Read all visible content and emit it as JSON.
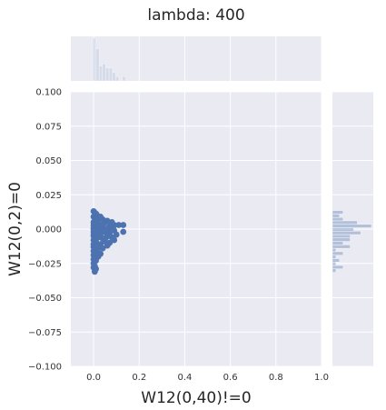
{
  "chart_data": {
    "type": "scatter",
    "title": "lambda: 400",
    "xlabel": "W12(0,40)!=0",
    "ylabel": "W12(0,2)=0",
    "xlim": [
      -0.1,
      1.0
    ],
    "ylim": [
      -0.1,
      0.1
    ],
    "xticks": [
      0.0,
      0.2,
      0.4,
      0.6,
      0.8,
      1.0
    ],
    "xtick_labels": [
      "0.0",
      "0.2",
      "0.4",
      "0.6",
      "0.8",
      "1.0"
    ],
    "yticks": [
      -0.1,
      -0.075,
      -0.05,
      -0.025,
      0.0,
      0.025,
      0.05,
      0.075,
      0.1
    ],
    "ytick_labels": [
      "−0.100",
      "−0.075",
      "−0.050",
      "−0.025",
      "0.000",
      "0.025",
      "0.050",
      "0.075",
      "0.100"
    ],
    "grid": true,
    "marginal_histograms": true,
    "colors": {
      "points": "#4c72b0",
      "axes_bg": "#eaeaf2",
      "grid": "#ffffff",
      "hist": "#4c72b0"
    },
    "points": [
      [
        0.0,
        0.013
      ],
      [
        0.005,
        0.012
      ],
      [
        0.012,
        0.011
      ],
      [
        0.0,
        0.009
      ],
      [
        0.01,
        0.008
      ],
      [
        0.02,
        0.007
      ],
      [
        0.04,
        0.007
      ],
      [
        0.06,
        0.006
      ],
      [
        0.08,
        0.005
      ],
      [
        0.05,
        0.005
      ],
      [
        0.012,
        0.004
      ],
      [
        0.0,
        0.003
      ],
      [
        0.03,
        0.003
      ],
      [
        0.09,
        0.003
      ],
      [
        0.11,
        0.003
      ],
      [
        0.13,
        0.003
      ],
      [
        0.07,
        0.002
      ],
      [
        0.04,
        0.001
      ],
      [
        0.0,
        0.001
      ],
      [
        0.02,
        0.0
      ],
      [
        0.06,
        0.0
      ],
      [
        0.09,
        -0.001
      ],
      [
        0.0,
        -0.002
      ],
      [
        0.01,
        -0.002
      ],
      [
        0.05,
        -0.002
      ],
      [
        0.07,
        -0.003
      ],
      [
        0.13,
        -0.002
      ],
      [
        0.1,
        -0.004
      ],
      [
        0.03,
        -0.004
      ],
      [
        0.0,
        -0.005
      ],
      [
        0.06,
        -0.005
      ],
      [
        0.08,
        -0.006
      ],
      [
        0.02,
        -0.006
      ],
      [
        0.04,
        -0.007
      ],
      [
        0.0,
        -0.008
      ],
      [
        0.09,
        -0.008
      ],
      [
        0.01,
        -0.009
      ],
      [
        0.05,
        -0.009
      ],
      [
        0.07,
        -0.01
      ],
      [
        0.0,
        -0.011
      ],
      [
        0.03,
        -0.011
      ],
      [
        0.06,
        -0.012
      ],
      [
        0.0,
        -0.013
      ],
      [
        0.02,
        -0.014
      ],
      [
        0.04,
        -0.014
      ],
      [
        0.0,
        -0.016
      ],
      [
        0.01,
        -0.017
      ],
      [
        0.03,
        -0.018
      ],
      [
        0.0,
        -0.019
      ],
      [
        0.02,
        -0.02
      ],
      [
        0.0,
        -0.022
      ],
      [
        0.01,
        -0.023
      ],
      [
        0.0,
        -0.025
      ],
      [
        0.005,
        -0.027
      ],
      [
        0.0,
        -0.028
      ],
      [
        0.01,
        -0.029
      ],
      [
        0.005,
        -0.031
      ],
      [
        0.0,
        0.005
      ],
      [
        0.0,
        -0.004
      ],
      [
        0.0,
        0.0
      ],
      [
        0.015,
        0.006
      ],
      [
        0.025,
        0.002
      ],
      [
        0.035,
        -0.001
      ],
      [
        0.045,
        0.004
      ],
      [
        0.055,
        -0.006
      ],
      [
        0.065,
        0.001
      ],
      [
        0.075,
        -0.001
      ],
      [
        0.085,
        0.001
      ],
      [
        0.03,
        0.009
      ],
      [
        0.015,
        -0.012
      ]
    ]
  }
}
